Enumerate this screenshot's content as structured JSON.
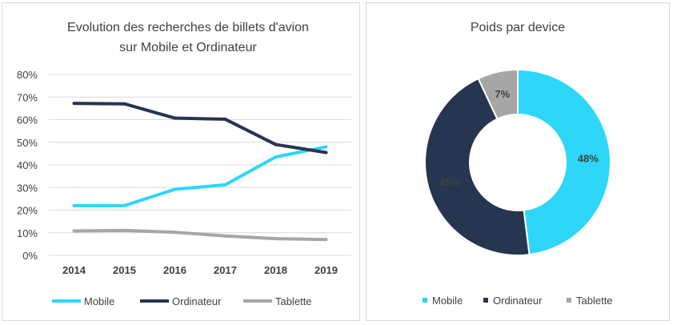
{
  "colors": {
    "mobile": "#2ed6f8",
    "ordinateur": "#263550",
    "tablette": "#a6a6a6",
    "grid": "#d9d9d9",
    "text": "#404040"
  },
  "chart_data": [
    {
      "type": "line",
      "title": [
        "Evolution des recherches de billets d'avion",
        "sur Mobile et Ordinateur"
      ],
      "x": [
        "2014",
        "2015",
        "2016",
        "2017",
        "2018",
        "2019"
      ],
      "ylim": [
        0,
        80
      ],
      "yticks": [
        "0%",
        "10%",
        "20%",
        "30%",
        "40%",
        "50%",
        "60%",
        "70%",
        "80%"
      ],
      "grid": true,
      "legend_position": "bottom",
      "series": [
        {
          "name": "Mobile",
          "color": "#2ed6f8",
          "values": [
            22,
            22,
            29.2,
            31.2,
            43.5,
            48
          ]
        },
        {
          "name": "Ordinateur",
          "color": "#263550",
          "values": [
            67.2,
            67,
            60.7,
            60.2,
            49,
            45.5
          ]
        },
        {
          "name": "Tablette",
          "color": "#a6a6a6",
          "values": [
            10.8,
            11,
            10.2,
            8.6,
            7.4,
            7
          ]
        }
      ]
    },
    {
      "type": "pie",
      "donut": true,
      "title": "Poids par device",
      "legend_position": "bottom",
      "slices": [
        {
          "name": "Mobile",
          "value": 48,
          "label": "48%",
          "color": "#2ed6f8"
        },
        {
          "name": "Ordinateur",
          "value": 45,
          "label": "45%",
          "color": "#263550"
        },
        {
          "name": "Tablette",
          "value": 7,
          "label": "7%",
          "color": "#a6a6a6"
        }
      ]
    }
  ]
}
